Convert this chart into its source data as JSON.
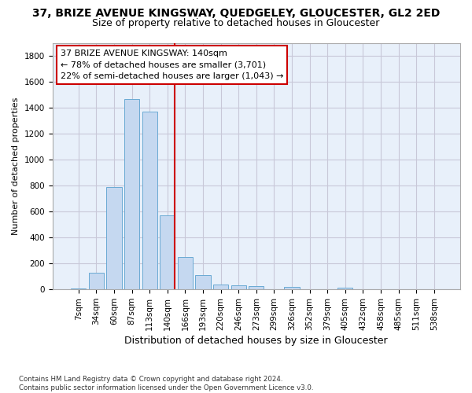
{
  "title": "37, BRIZE AVENUE KINGSWAY, QUEDGELEY, GLOUCESTER, GL2 2ED",
  "subtitle": "Size of property relative to detached houses in Gloucester",
  "xlabel": "Distribution of detached houses by size in Gloucester",
  "ylabel": "Number of detached properties",
  "bar_labels": [
    "7sqm",
    "34sqm",
    "60sqm",
    "87sqm",
    "113sqm",
    "140sqm",
    "166sqm",
    "193sqm",
    "220sqm",
    "246sqm",
    "273sqm",
    "299sqm",
    "326sqm",
    "352sqm",
    "379sqm",
    "405sqm",
    "432sqm",
    "458sqm",
    "485sqm",
    "511sqm",
    "538sqm"
  ],
  "bar_values": [
    10,
    130,
    790,
    1470,
    1370,
    570,
    250,
    110,
    35,
    30,
    25,
    0,
    20,
    0,
    0,
    15,
    0,
    0,
    0,
    0,
    0
  ],
  "bar_color": "#C5D8F0",
  "bar_edge_color": "#6AAAD4",
  "vline_color": "#CC0000",
  "annotation_line1": "37 BRIZE AVENUE KINGSWAY: 140sqm",
  "annotation_line2": "← 78% of detached houses are smaller (3,701)",
  "annotation_line3": "22% of semi-detached houses are larger (1,043) →",
  "annotation_box_color": "#CC0000",
  "ylim": [
    0,
    1900
  ],
  "yticks": [
    0,
    200,
    400,
    600,
    800,
    1000,
    1200,
    1400,
    1600,
    1800
  ],
  "footer": "Contains HM Land Registry data © Crown copyright and database right 2024.\nContains public sector information licensed under the Open Government Licence v3.0.",
  "background_color": "#ffffff",
  "plot_bg_color": "#E8F0FA",
  "grid_color": "#c8c8d8",
  "title_fontsize": 10,
  "subtitle_fontsize": 9,
  "ylabel_fontsize": 8,
  "xlabel_fontsize": 9,
  "annotation_fontsize": 8,
  "tick_fontsize": 7.5
}
